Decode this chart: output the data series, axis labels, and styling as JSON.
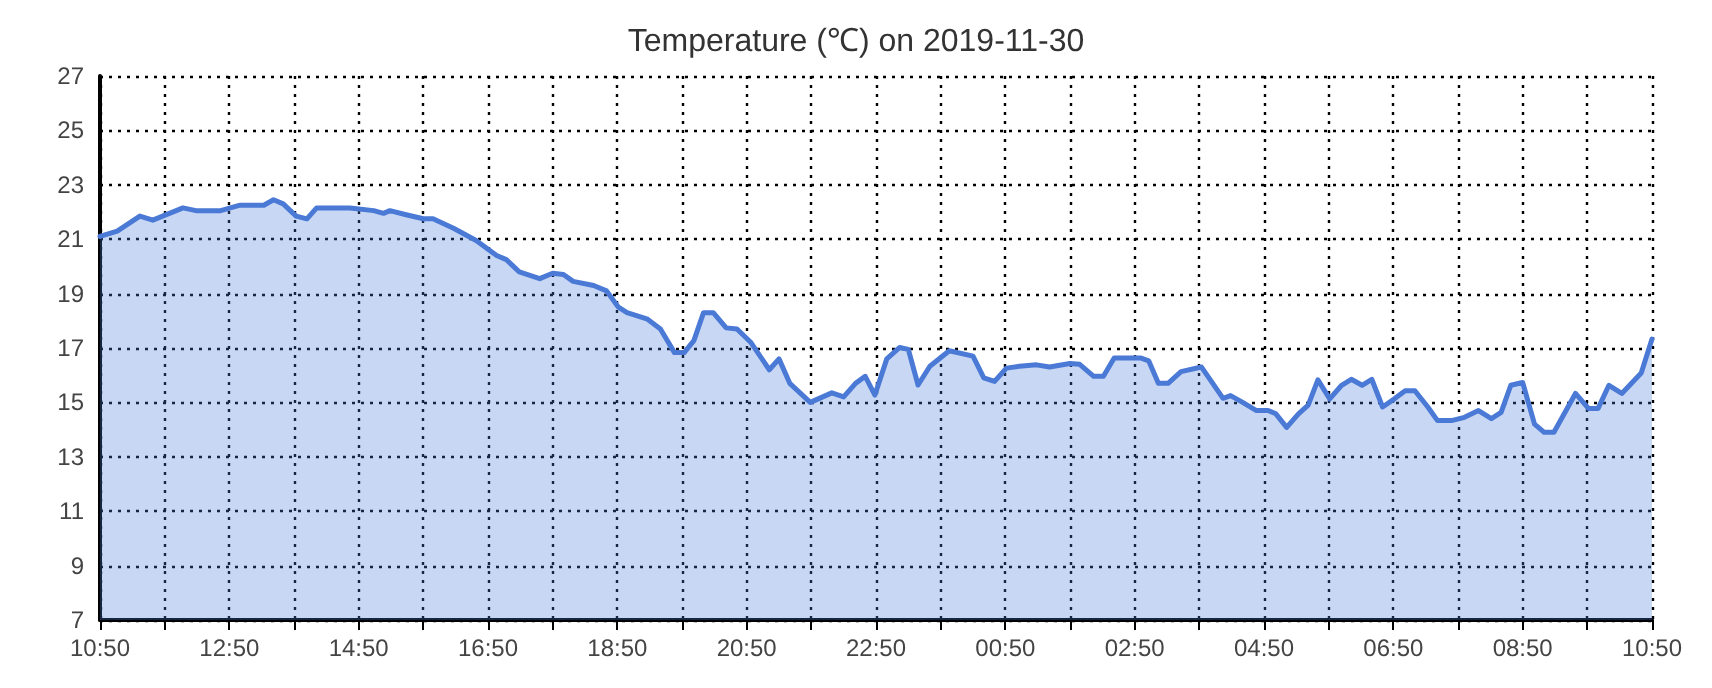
{
  "chart_data": {
    "type": "area",
    "title": "Temperature (℃) on 2019-11-30",
    "x": [
      "2019-11-30T10:50",
      "2019-11-30T11:06",
      "2019-11-30T11:27",
      "2019-11-30T11:39",
      "2019-11-30T12:07",
      "2019-11-30T12:19",
      "2019-11-30T12:42",
      "2019-11-30T13:00",
      "2019-11-30T13:22",
      "2019-11-30T13:31",
      "2019-11-30T13:40",
      "2019-11-30T13:52",
      "2019-11-30T14:02",
      "2019-11-30T14:11",
      "2019-11-30T14:42",
      "2019-11-30T15:04",
      "2019-11-30T15:13",
      "2019-11-30T15:19",
      "2019-11-30T15:34",
      "2019-11-30T15:50",
      "2019-11-30T15:59",
      "2019-11-30T16:18",
      "2019-11-30T16:39",
      "2019-11-30T16:58",
      "2019-11-30T17:07",
      "2019-11-30T17:19",
      "2019-11-30T17:38",
      "2019-11-30T17:50",
      "2019-11-30T18:00",
      "2019-11-30T18:09",
      "2019-11-30T18:28",
      "2019-11-30T18:40",
      "2019-11-30T18:51",
      "2019-11-30T18:59",
      "2019-11-30T19:18",
      "2019-11-30T19:30",
      "2019-11-30T19:43",
      "2019-11-30T19:52",
      "2019-11-30T20:01",
      "2019-11-30T20:10",
      "2019-11-30T20:19",
      "2019-11-30T20:31",
      "2019-11-30T20:41",
      "2019-11-30T20:54",
      "2019-11-30T21:11",
      "2019-11-30T21:20",
      "2019-11-30T21:30",
      "2019-11-30T21:49",
      "2019-11-30T22:09",
      "2019-11-30T22:20",
      "2019-11-30T22:31",
      "2019-11-30T22:40",
      "2019-11-30T22:49",
      "2019-11-30T23:00",
      "2019-11-30T23:12",
      "2019-11-30T23:20",
      "2019-11-30T23:29",
      "2019-11-30T23:40",
      "2019-11-30T23:58",
      "2019-12-01T00:20",
      "2019-12-01T00:30",
      "2019-12-01T00:40",
      "2019-12-01T00:51",
      "2019-12-01T01:03",
      "2019-12-01T01:19",
      "2019-12-01T01:31",
      "2019-12-01T01:50",
      "2019-12-01T01:59",
      "2019-12-01T02:12",
      "2019-12-01T02:21",
      "2019-12-01T02:31",
      "2019-12-01T02:56",
      "2019-12-01T03:03",
      "2019-12-01T03:12",
      "2019-12-01T03:21",
      "2019-12-01T03:33",
      "2019-12-01T03:52",
      "2019-12-01T04:01",
      "2019-12-01T04:12",
      "2019-12-01T04:19",
      "2019-12-01T04:29",
      "2019-12-01T04:43",
      "2019-12-01T04:54",
      "2019-12-01T05:01",
      "2019-12-01T05:11",
      "2019-12-01T05:22",
      "2019-12-01T05:31",
      "2019-12-01T05:40",
      "2019-12-01T05:51",
      "2019-12-01T06:02",
      "2019-12-01T06:11",
      "2019-12-01T06:21",
      "2019-12-01T06:30",
      "2019-12-01T06:40",
      "2019-12-01T06:51",
      "2019-12-01T07:01",
      "2019-12-01T07:10",
      "2019-12-01T07:22",
      "2019-12-01T07:31",
      "2019-12-01T07:44",
      "2019-12-01T07:56",
      "2019-12-01T08:09",
      "2019-12-01T08:21",
      "2019-12-01T08:30",
      "2019-12-01T08:39",
      "2019-12-01T08:50",
      "2019-12-01T09:01",
      "2019-12-01T09:10",
      "2019-12-01T09:19",
      "2019-12-01T09:39",
      "2019-12-01T09:51",
      "2019-12-01T10:00",
      "2019-12-01T10:10",
      "2019-12-01T10:22",
      "2019-12-01T10:40",
      "2019-12-01T10:50"
    ],
    "series": [
      {
        "color": "#4a79d6",
        "values": [
          21.1,
          21.3,
          21.85,
          21.7,
          22.15,
          22.05,
          22.05,
          22.25,
          22.25,
          22.45,
          22.3,
          21.85,
          21.75,
          22.15,
          22.15,
          22.05,
          21.95,
          22.05,
          21.9,
          21.75,
          21.75,
          21.4,
          20.95,
          20.4,
          20.25,
          19.8,
          19.55,
          19.75,
          19.7,
          19.45,
          19.3,
          19.1,
          18.5,
          18.3,
          18.06,
          17.7,
          16.83,
          16.83,
          17.27,
          18.3,
          18.3,
          17.74,
          17.7,
          17.2,
          16.2,
          16.6,
          15.7,
          15.0,
          15.35,
          15.2,
          15.7,
          15.96,
          15.27,
          16.6,
          17.02,
          16.95,
          15.64,
          16.33,
          16.9,
          16.7,
          15.9,
          15.77,
          16.26,
          16.33,
          16.38,
          16.3,
          16.43,
          16.4,
          15.96,
          15.96,
          16.63,
          16.63,
          16.53,
          15.7,
          15.7,
          16.13,
          16.3,
          15.78,
          15.15,
          15.25,
          15.03,
          14.7,
          14.7,
          14.58,
          14.08,
          14.58,
          14.9,
          15.83,
          15.13,
          15.63,
          15.85,
          15.63,
          15.85,
          14.83,
          15.13,
          15.43,
          15.43,
          14.83,
          14.33,
          14.33,
          14.45,
          14.7,
          14.4,
          14.63,
          15.63,
          15.73,
          14.2,
          13.9,
          13.9,
          15.33,
          14.78,
          14.78,
          15.63,
          15.33,
          16.08,
          17.33
        ]
      }
    ],
    "xlim": [
      "2019-11-30T10:50",
      "2019-12-01T10:50"
    ],
    "xticks": [
      {
        "value": "2019-11-30T10:50",
        "label": "10:50"
      },
      {
        "value": "2019-11-30T11:50",
        "label": null
      },
      {
        "value": "2019-11-30T12:50",
        "label": "12:50"
      },
      {
        "value": "2019-11-30T13:50",
        "label": null
      },
      {
        "value": "2019-11-30T14:50",
        "label": "14:50"
      },
      {
        "value": "2019-11-30T15:50",
        "label": null
      },
      {
        "value": "2019-11-30T16:50",
        "label": "16:50"
      },
      {
        "value": "2019-11-30T17:50",
        "label": null
      },
      {
        "value": "2019-11-30T18:50",
        "label": "18:50"
      },
      {
        "value": "2019-11-30T19:50",
        "label": null
      },
      {
        "value": "2019-11-30T20:50",
        "label": "20:50"
      },
      {
        "value": "2019-11-30T21:50",
        "label": null
      },
      {
        "value": "2019-11-30T22:50",
        "label": "22:50"
      },
      {
        "value": "2019-11-30T23:50",
        "label": null
      },
      {
        "value": "2019-12-01T00:50",
        "label": "00:50"
      },
      {
        "value": "2019-12-01T01:50",
        "label": null
      },
      {
        "value": "2019-12-01T02:50",
        "label": "02:50"
      },
      {
        "value": "2019-12-01T03:50",
        "label": null
      },
      {
        "value": "2019-12-01T04:50",
        "label": "04:50"
      },
      {
        "value": "2019-12-01T05:50",
        "label": null
      },
      {
        "value": "2019-12-01T06:50",
        "label": "06:50"
      },
      {
        "value": "2019-12-01T07:50",
        "label": null
      },
      {
        "value": "2019-12-01T08:50",
        "label": "08:50"
      },
      {
        "value": "2019-12-01T09:50",
        "label": null
      },
      {
        "value": "2019-12-01T10:50",
        "label": "10:50"
      }
    ],
    "ylim": [
      7,
      27
    ],
    "yticks": [
      7,
      9,
      11,
      13,
      15,
      17,
      19,
      21,
      23,
      25,
      27
    ],
    "grid": true,
    "marker": "none",
    "line_style": "solid"
  }
}
